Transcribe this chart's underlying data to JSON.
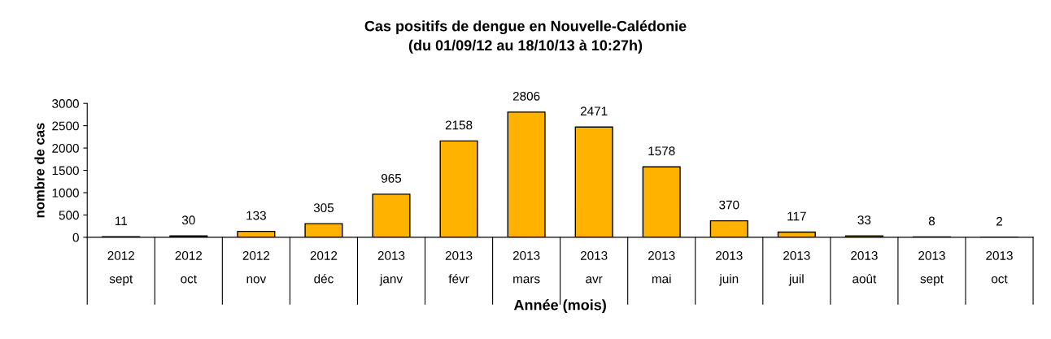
{
  "chart_data": {
    "type": "bar",
    "title": "Cas positifs de dengue en Nouvelle-Calédonie\n(du 01/09/12 au 18/10/13 à 10:27h)",
    "xlabel": "Année (mois)",
    "ylabel": "nombre de cas",
    "categories": [
      "2012\nsept",
      "2012\noct",
      "2012\nnov",
      "2012\ndéc",
      "2013\njanv",
      "2013\nfévr",
      "2013\nmars",
      "2013\navr",
      "2013\nmai",
      "2013\njuin",
      "2013\njuil",
      "2013\naoût",
      "2013\nsept",
      "2013\noct"
    ],
    "values": [
      11,
      30,
      133,
      305,
      965,
      2158,
      2806,
      2471,
      1578,
      370,
      117,
      33,
      8,
      2
    ],
    "color": "#ffb300",
    "ylim": [
      0,
      3000
    ],
    "yticks": [
      0,
      500,
      1000,
      1500,
      2000,
      2500,
      3000
    ],
    "data_labels": true,
    "grid": false,
    "legend": false
  }
}
